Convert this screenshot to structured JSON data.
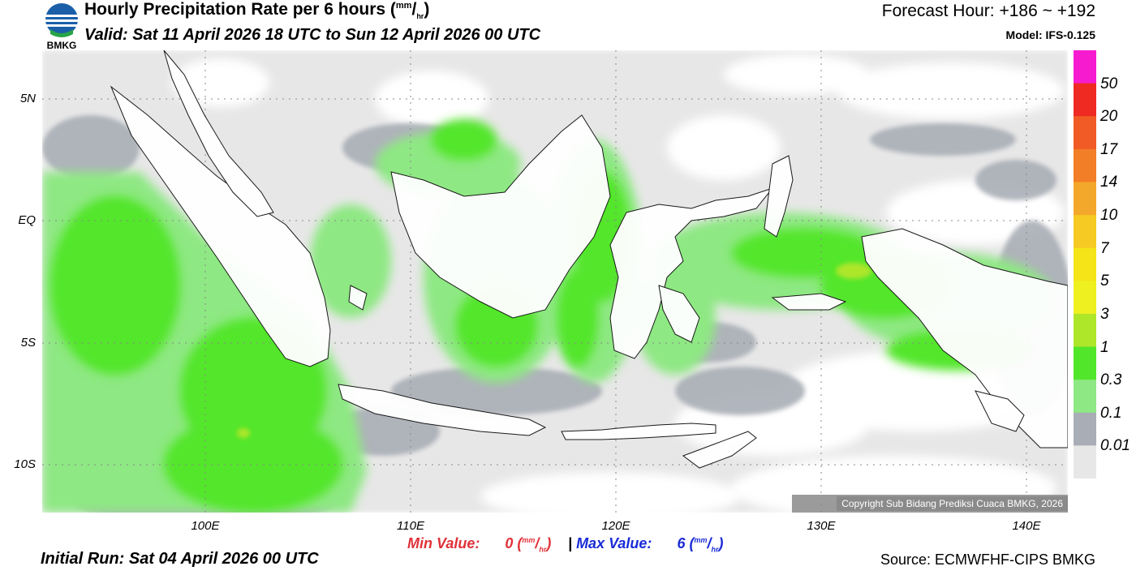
{
  "header": {
    "logo_text": "BMKG",
    "title_main": "Hourly Precipitation Rate per 6 hours (",
    "title_unit_sup": "mm",
    "title_unit_slash": "/",
    "title_unit_sub": "hr",
    "title_close": ")",
    "valid": "Valid: Sat 11 April 2026 18 UTC to Sun 12 April 2026 00 UTC",
    "forecast_hour": "Forecast Hour: +186 ~ +192",
    "model": "Model: IFS-0.125"
  },
  "axes": {
    "lat_labels": [
      "5N",
      "EQ",
      "5S",
      "10S"
    ],
    "lon_labels": [
      "100E",
      "110E",
      "120E",
      "130E",
      "140E"
    ]
  },
  "colorbar": {
    "labels": [
      "50",
      "20",
      "17",
      "14",
      "10",
      "7",
      "5",
      "3",
      "1",
      "0.3",
      "0.1",
      "0.01"
    ],
    "colors": [
      "#f71bd0",
      "#ee2a22",
      "#f15b25",
      "#f27e27",
      "#f4a82b",
      "#f6c923",
      "#f4e418",
      "#eef020",
      "#aee62a",
      "#52e62a",
      "#8ee883",
      "#a9aeb6",
      "#e7e7e7"
    ]
  },
  "footer": {
    "min_label": "Min Value:",
    "min_value": "0",
    "max_sep": "|",
    "max_label": "Max Value:",
    "max_value": "6",
    "unit_sup": "mm",
    "unit_slash": "/",
    "unit_sub": "hr",
    "initial_run": "Initial Run: Sat 04 April 2026 00 UTC",
    "source": "Source: ECMWFHF-CIPS BMKG",
    "copyright": "Copyright Sub Bidang Prediksi Cuaca BMKG, 2026"
  }
}
